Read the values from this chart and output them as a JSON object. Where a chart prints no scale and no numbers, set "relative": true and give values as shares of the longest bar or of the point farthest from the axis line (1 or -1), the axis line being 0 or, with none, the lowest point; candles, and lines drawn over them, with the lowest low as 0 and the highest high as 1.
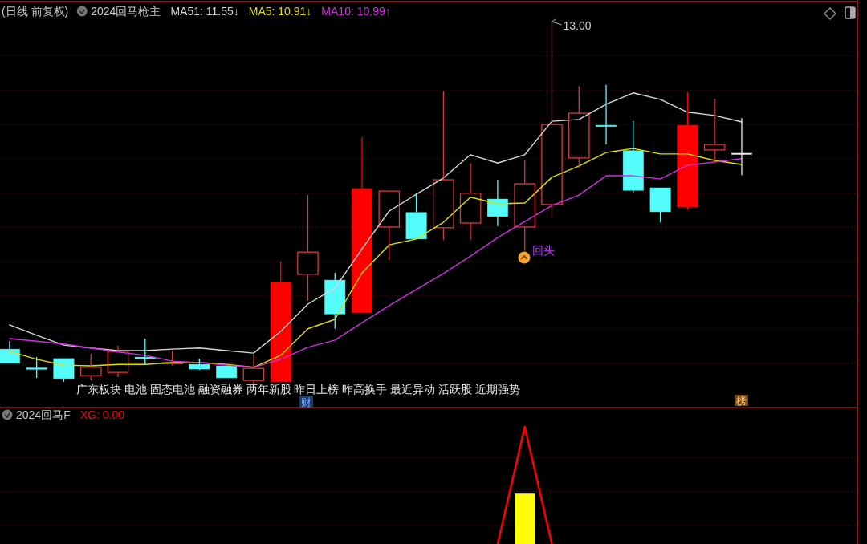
{
  "chart_data": [
    {
      "type": "candlestick",
      "title": "(日线 前复权)",
      "subtitle": "2024回马枪主",
      "relative": true,
      "legend": "top left",
      "color": "#d83a3a",
      "ref_lines": [
        {
          "axis": "y",
          "value": 0.907,
          "color": "#5a1010",
          "line_style": "dotted"
        },
        {
          "axis": "y",
          "value": 0.81,
          "color": "#5a1010",
          "line_style": "dotted"
        },
        {
          "axis": "y",
          "value": 0.717,
          "color": "#5a1010",
          "line_style": "dotted"
        },
        {
          "axis": "y",
          "value": 0.623,
          "color": "#5a1010",
          "line_style": "dotted"
        },
        {
          "axis": "y",
          "value": 0.528,
          "color": "#5a1010",
          "line_style": "dotted"
        },
        {
          "axis": "y",
          "value": 0.435,
          "color": "#5a1010",
          "line_style": "dotted"
        },
        {
          "axis": "y",
          "value": 0.34,
          "color": "#5a1010",
          "line_style": "dotted"
        },
        {
          "axis": "y",
          "value": 0.247,
          "color": "#5a1010",
          "line_style": "dotted"
        },
        {
          "axis": "y",
          "value": 0.155,
          "color": "#5a1010",
          "line_style": "dotted"
        },
        {
          "axis": "y",
          "value": 0.06,
          "color": "#5a1010",
          "line_style": "dotted"
        }
      ],
      "categories": [
        null,
        null,
        null,
        null,
        null,
        null,
        null,
        null,
        null,
        null,
        null,
        null,
        null,
        null,
        null,
        null,
        null,
        null,
        null,
        null,
        null,
        null,
        null,
        null,
        null,
        null,
        null,
        null
      ],
      "ohlc": [
        [
          0.099,
          0.121,
          0.06,
          0.06
        ],
        [
          0.047,
          0.077,
          0.02,
          0.046
        ],
        [
          0.073,
          0.073,
          0.009,
          0.018
        ],
        [
          0.026,
          0.086,
          0.013,
          0.049
        ],
        [
          0.035,
          0.108,
          0.022,
          0.093
        ],
        [
          0.077,
          0.128,
          0.057,
          0.073
        ],
        [
          0.06,
          0.095,
          0.055,
          0.062
        ],
        [
          0.057,
          0.073,
          0.042,
          0.044
        ],
        [
          0.053,
          0.053,
          0.02,
          0.02
        ],
        [
          0.013,
          0.084,
          0,
          0.046
        ],
        [
          0.009,
          0.34,
          0.009,
          0.283
        ],
        [
          0.305,
          0.523,
          0.232,
          0.366
        ],
        [
          0.289,
          0.309,
          0.155,
          0.196
        ],
        [
          0.199,
          0.682,
          0.199,
          0.541
        ],
        [
          0.435,
          0.534,
          0.344,
          0.534
        ],
        [
          0.475,
          0.528,
          0.402,
          0.402
        ],
        [
          0.433,
          0.808,
          0.4,
          0.565
        ],
        [
          0.446,
          0.611,
          0.4,
          0.528
        ],
        [
          0.512,
          0.565,
          0.437,
          0.464
        ],
        [
          0.435,
          0.62,
          0.369,
          0.554
        ],
        [
          0.497,
          1,
          0.459,
          0.717
        ],
        [
          0.625,
          0.823,
          0.598,
          0.748
        ],
        [
          0.715,
          0.826,
          0.662,
          0.713
        ],
        [
          0.645,
          0.726,
          0.53,
          0.536
        ],
        [
          0.543,
          0.543,
          0.448,
          0.477
        ],
        [
          0.49,
          0.806,
          0.483,
          0.715
        ],
        [
          0.647,
          0.788,
          0.611,
          0.662
        ],
        [
          0.638,
          0.735,
          0.578,
          0.638
        ]
      ],
      "colors": [
        "#54fcfc",
        "#54fcfc",
        "#54fcfc",
        "#d83a3a",
        "#d83a3a",
        "#54fcfc",
        "#d83a3a",
        "#54fcfc",
        "#54fcfc",
        "#d83a3a",
        "#ff0000",
        "#d83a3a",
        "#54fcfc",
        "#ff0000",
        "#d83a3a",
        "#54fcfc",
        "#d83a3a",
        "#d83a3a",
        "#54fcfc",
        "#d83a3a",
        "#d83a3a",
        "#d83a3a",
        "#54fcfc",
        "#54fcfc",
        "#54fcfc",
        "#ff0000",
        "#d83a3a",
        "#e8e8e8"
      ],
      "series": [
        {
          "name": "MA51: 11.55↓",
          "type": "line",
          "color": "#d8d8d8",
          "values": [
            0.166,
            0.137,
            0.11,
            0.102,
            0.095,
            0.095,
            0.099,
            0.102,
            0.095,
            0.088,
            0.148,
            0.223,
            0.267,
            0.375,
            0.479,
            0.525,
            0.57,
            0.634,
            0.611,
            0.634,
            0.726,
            0.731,
            0.773,
            0.804,
            0.786,
            0.751,
            0.742,
            0.724
          ]
        },
        {
          "name": "MA5: 10.91↓",
          "type": "line",
          "color": "#e0e000",
          "values": [
            0.093,
            0.071,
            0.055,
            0.053,
            0.057,
            0.057,
            0.062,
            0.062,
            0.057,
            0.049,
            0.082,
            0.155,
            0.181,
            0.309,
            0.386,
            0.402,
            0.448,
            0.517,
            0.499,
            0.501,
            0.572,
            0.603,
            0.64,
            0.651,
            0.636,
            0.636,
            0.618,
            0.607
          ]
        },
        {
          "name": "MA10: 10.99↑",
          "type": "line",
          "color": "#d030e0",
          "values": [
            0.128,
            0.121,
            0.113,
            0.102,
            0.091,
            0.082,
            0.066,
            0.062,
            0.055,
            0.049,
            0.071,
            0.104,
            0.124,
            0.172,
            0.219,
            0.263,
            0.307,
            0.355,
            0.406,
            0.45,
            0.494,
            0.523,
            0.576,
            0.576,
            0.567,
            0.605,
            0.614,
            0.623
          ]
        }
      ],
      "annotations": [
        "13.00",
        "回头",
        "广东板块 电池 固态电池 融资融券 两年新股 昨日上榜 昨高换手 最近异动 活跃股 近期强势",
        "财",
        "榜"
      ]
    },
    {
      "type": "line",
      "title": "2024回马F",
      "relative": true,
      "legend": "top left",
      "ref_lines": [
        {
          "axis": "y",
          "value": 0.74,
          "color": "#5a1010",
          "line_style": "dotted"
        },
        {
          "axis": "y",
          "value": 0.445,
          "color": "#5a1010",
          "line_style": "dotted"
        },
        {
          "axis": "y",
          "value": 0.158,
          "color": "#5a1010",
          "line_style": "dotted"
        }
      ],
      "categories": [
        null,
        null,
        null,
        null,
        null,
        null,
        null,
        null,
        null,
        null,
        null,
        null,
        null,
        null,
        null,
        null,
        null,
        null,
        null,
        null,
        null,
        null,
        null,
        null,
        null,
        null,
        null,
        null
      ],
      "series": [
        {
          "type": "bar",
          "color": "#ffff00",
          "values": [
            null,
            null,
            null,
            null,
            null,
            null,
            null,
            null,
            null,
            null,
            null,
            null,
            null,
            null,
            null,
            null,
            null,
            null,
            null,
            0.43,
            null,
            null,
            null,
            null,
            null,
            null,
            null,
            null
          ]
        },
        {
          "name": "XG: 0.00",
          "type": "line",
          "color": "#ff0000",
          "values": [
            null,
            null,
            null,
            null,
            null,
            null,
            null,
            null,
            null,
            null,
            null,
            null,
            null,
            null,
            null,
            null,
            null,
            null,
            0,
            1,
            0,
            null,
            null,
            null,
            null,
            null,
            null,
            null
          ]
        }
      ]
    }
  ]
}
